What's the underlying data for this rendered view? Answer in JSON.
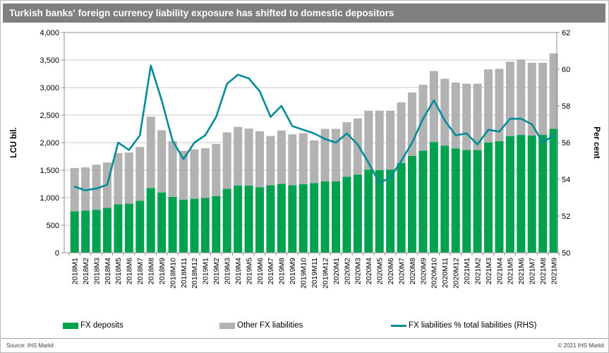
{
  "title": "Turkish banks' foreign currency liability exposure has shifted to domestic depositors",
  "footer": {
    "source": "Source: IHS Markit",
    "copyright": "© 2021 IHS Markit"
  },
  "colors": {
    "title_bar_bg": "#7f7f7f",
    "title_text": "#ffffff",
    "fx_deposits_green": "#00a14f",
    "other_fx_gray": "#b2b2b2",
    "pct_line_teal": "#008b99",
    "gridline": "#c9c9c9",
    "axis_line": "#8c8c8c"
  },
  "chart_data": {
    "type": "bar",
    "stacked": true,
    "grid": true,
    "legend_position": "bottom",
    "title": "Turkish banks' foreign currency liability exposure has shifted to domestic depositors",
    "xlabel": "",
    "ylabel_left": "LCU bil.",
    "ylabel_right": "Per cent",
    "ylim_left": [
      0,
      4000
    ],
    "ylim_right": [
      50,
      62
    ],
    "yticks_left": [
      {
        "value": 0,
        "label": "0"
      },
      {
        "value": 500,
        "label": "500"
      },
      {
        "value": 1000,
        "label": "1,000"
      },
      {
        "value": 1500,
        "label": "1,500"
      },
      {
        "value": 2000,
        "label": "2,000"
      },
      {
        "value": 2500,
        "label": "2,500"
      },
      {
        "value": 3000,
        "label": "3,000"
      },
      {
        "value": 3500,
        "label": "3,500"
      },
      {
        "value": 4000,
        "label": "4,000"
      }
    ],
    "yticks_right": [
      {
        "value": 50,
        "label": "50"
      },
      {
        "value": 52,
        "label": "52"
      },
      {
        "value": 54,
        "label": "54"
      },
      {
        "value": 56,
        "label": "56"
      },
      {
        "value": 58,
        "label": "58"
      },
      {
        "value": 60,
        "label": "60"
      },
      {
        "value": 62,
        "label": "62"
      }
    ],
    "categories": [
      "2018M1",
      "2018M2",
      "2018M3",
      "2018M4",
      "2018M5",
      "2018M6",
      "2018M7",
      "2018M8",
      "2018M9",
      "2018M10",
      "2018M11",
      "2018M12",
      "2019M1",
      "2019M2",
      "2019M3",
      "2019M4",
      "2019M5",
      "2019M6",
      "2019M7",
      "2019M8",
      "2019M9",
      "2019M10",
      "2019M11",
      "2019M12",
      "2020M1",
      "2020M2",
      "2020M3",
      "2020M4",
      "2020M5",
      "2020M6",
      "2020M7",
      "2020M8",
      "2020M9",
      "2020M10",
      "2020M11",
      "2020M12",
      "2021M1",
      "2021M2",
      "2021M3",
      "2021M4",
      "2021M5",
      "2021M6",
      "2021M7",
      "2021M8",
      "2021M9"
    ],
    "series": [
      {
        "name": "FX deposits",
        "color": "#00a14f",
        "axis": "left",
        "values": [
          750,
          765,
          780,
          815,
          880,
          890,
          945,
          1175,
          1095,
          1015,
          965,
          980,
          995,
          1030,
          1160,
          1220,
          1220,
          1190,
          1225,
          1250,
          1225,
          1245,
          1265,
          1295,
          1295,
          1380,
          1420,
          1510,
          1500,
          1510,
          1630,
          1760,
          1855,
          2010,
          1945,
          1895,
          1865,
          1865,
          2000,
          2025,
          2120,
          2140,
          2130,
          2140,
          2250
        ]
      },
      {
        "name": "Other FX liabilities",
        "color": "#b2b2b2",
        "axis": "left",
        "values": [
          790,
          785,
          820,
          825,
          930,
          930,
          975,
          1295,
          1130,
          1010,
          885,
          900,
          905,
          945,
          1025,
          1065,
          1035,
          1015,
          895,
          970,
          925,
          925,
          775,
          955,
          955,
          990,
          1020,
          1070,
          1080,
          1070,
          1100,
          1150,
          1195,
          1290,
          1215,
          1195,
          1205,
          1205,
          1330,
          1315,
          1350,
          1370,
          1320,
          1310,
          1370
        ]
      }
    ],
    "line_series": {
      "name": "FX liabilities % total liabilities (RHS)",
      "color": "#008b99",
      "axis": "right",
      "values": [
        53.6,
        53.4,
        53.5,
        53.7,
        56.0,
        55.6,
        56.4,
        60.2,
        58.3,
        56.1,
        55.1,
        56.0,
        56.4,
        57.4,
        59.2,
        59.7,
        59.5,
        58.8,
        57.4,
        58.0,
        56.9,
        56.7,
        56.5,
        56.2,
        56.0,
        56.5,
        55.9,
        54.9,
        53.8,
        54.1,
        55.0,
        56.0,
        57.3,
        58.3,
        57.2,
        56.4,
        56.5,
        55.9,
        56.7,
        56.6,
        57.3,
        57.3,
        57.0,
        56.0,
        56.4
      ]
    }
  }
}
